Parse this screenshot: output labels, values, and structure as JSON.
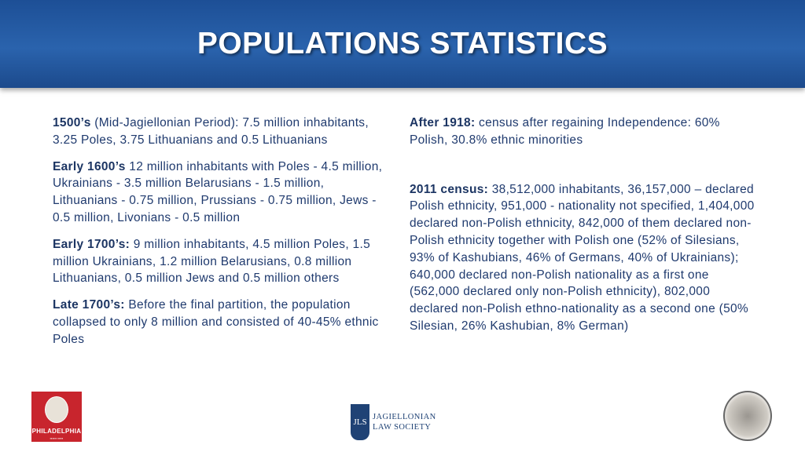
{
  "title": "POPULATIONS STATISTICS",
  "left": [
    {
      "head": "1500’s",
      "text": " (Mid-Jagiellonian Period): 7.5 million inhabitants, 3.25 Poles, 3.75 Lithuanians and 0.5 Lithuanians"
    },
    {
      "head": "Early 1600’s",
      "text": " 12 million inhabitants with Poles - 4.5 million, Ukrainians - 3.5 million Belarusians - 1.5 million, Lithuanians - 0.75 million, Prussians - 0.75 million, Jews - 0.5 million, Livonians - 0.5 million"
    },
    {
      "head": "Early 1700’s:",
      "text": " 9 million inhabitants, 4.5 million Poles, 1.5 million Ukrainians, 1.2 million Belarusians, 0.8 million Lithuanians, 0.5 million Jews and 0.5 million others"
    },
    {
      "head": "Late 1700’s:",
      "text": " Before the final partition, the population collapsed to only 8 million and consisted of 40-45% ethnic Poles"
    }
  ],
  "right": [
    {
      "head": "After 1918:",
      "text": " census after regaining Independence: 60% Polish, 30.8% ethnic minorities"
    },
    {
      "head": "2011 census:",
      "text": " 38,512,000 inhabitants, 36,157,000 – declared Polish ethnicity, 951,000 - nationality not specified, 1,404,000 declared non-Polish ethnicity, 842,000 of them declared non-Polish ethnicity together with Polish one (52% of Silesians, 93% of Kashubians, 46% of Germans, 40% of Ukrainians); 640,000 declared non-Polish nationality as a first one (562,000 declared only non-Polish ethnicity), 802,000 declared non-Polish ethno-nationality as a second one (50% Silesian, 26% Kashubian, 8% German)"
    }
  ],
  "logos": {
    "philadelphia": "PHILADELPHIA",
    "jls_mark": "JLS",
    "jls_line1": "JAGIELLONIAN",
    "jls_line2": "LAW SOCIETY"
  }
}
